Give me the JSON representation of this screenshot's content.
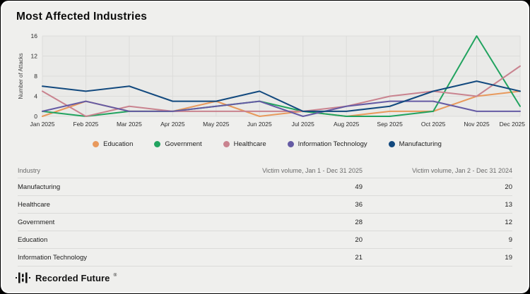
{
  "card": {
    "title": "Most Affected Industries"
  },
  "chart_data": {
    "type": "line",
    "title": "Most Affected Industries",
    "ylabel": "Number of Attacks",
    "xlabel": "",
    "ylim": [
      0,
      16
    ],
    "yticks": [
      0,
      4,
      8,
      12,
      16
    ],
    "grid": true,
    "legend_position": "bottom",
    "x": [
      "Jan 2025",
      "Feb 2025",
      "Mar 2025",
      "Apr 2025",
      "May 2025",
      "Jun 2025",
      "Jul 2025",
      "Aug 2025",
      "Sep 2025",
      "Oct 2025",
      "Nov 2025",
      "Dec 2025"
    ],
    "series": [
      {
        "name": "Education",
        "color": "#E8995C",
        "values": [
          0,
          3,
          1,
          1,
          3,
          0,
          1,
          0,
          1,
          1,
          4,
          5
        ]
      },
      {
        "name": "Government",
        "color": "#21A35F",
        "values": [
          1,
          0,
          1,
          1,
          2,
          3,
          1,
          0,
          0,
          1,
          16,
          2
        ]
      },
      {
        "name": "Healthcare",
        "color": "#C9838F",
        "values": [
          5,
          0,
          2,
          1,
          1,
          1,
          1,
          2,
          4,
          5,
          4,
          10
        ]
      },
      {
        "name": "Information Technology",
        "color": "#655BA4",
        "values": [
          1,
          3,
          1,
          1,
          2,
          3,
          0,
          2,
          3,
          3,
          1,
          1
        ]
      },
      {
        "name": "Manufacturing",
        "color": "#12497E",
        "values": [
          6,
          5,
          6,
          3,
          3,
          5,
          1,
          1,
          2,
          5,
          7,
          5
        ]
      }
    ]
  },
  "table": {
    "columns": [
      "Industry",
      "Victim volume, Jan 1 - Dec 31 2025",
      "Victim volume, Jan 2 - Dec 31 2024"
    ],
    "rows": [
      [
        "Manufacturing",
        "49",
        "20"
      ],
      [
        "Healthcare",
        "36",
        "13"
      ],
      [
        "Government",
        "28",
        "12"
      ],
      [
        "Education",
        "20",
        "9"
      ],
      [
        "Information Technology",
        "21",
        "19"
      ]
    ]
  },
  "footer": {
    "brand": "Recorded Future",
    "registered_mark": "®"
  },
  "colors": {
    "card_bg": "#EFEFED",
    "plot_bg": "#EAEAE8",
    "gridline": "#DCDCDA",
    "axis_text": "#2B2B2B",
    "separator": "#DBDBD9"
  }
}
